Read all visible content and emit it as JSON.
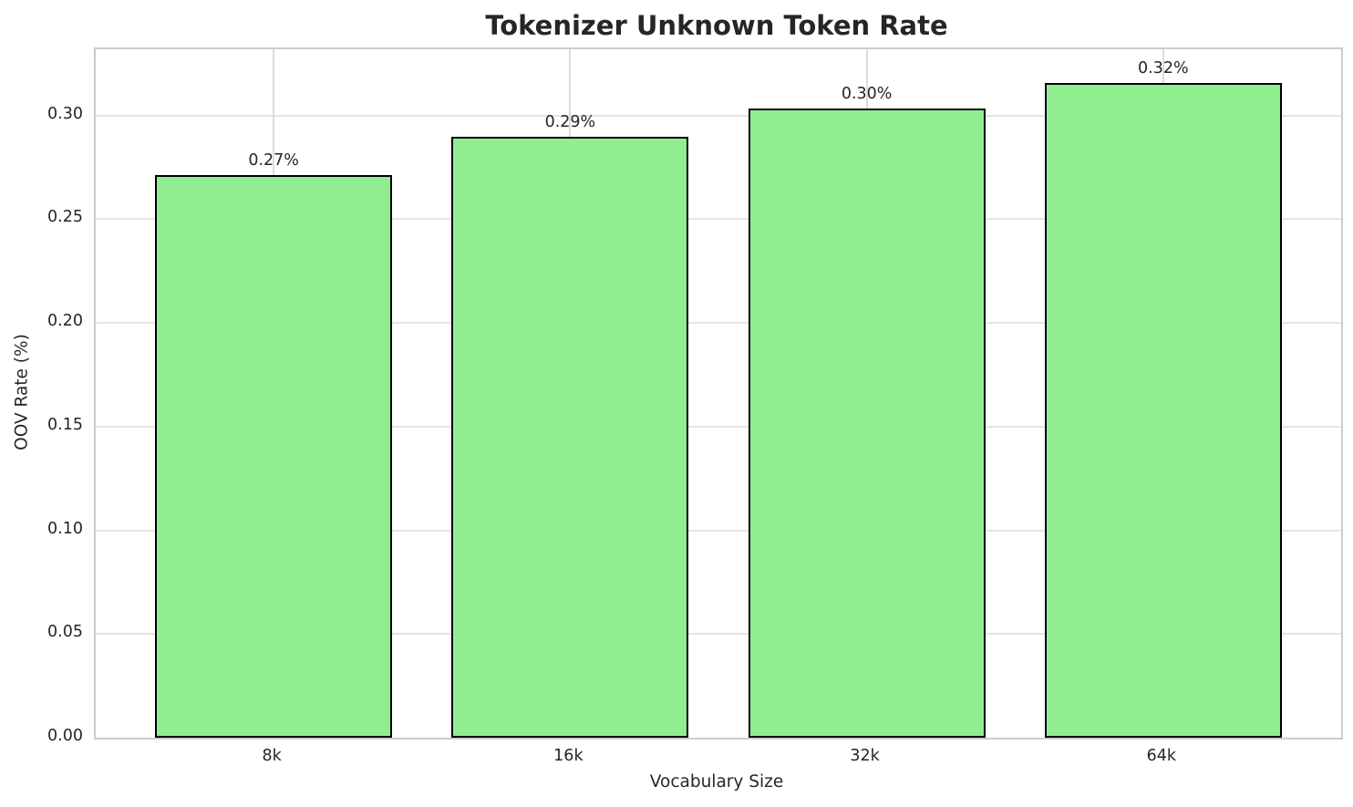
{
  "chart_data": {
    "type": "bar",
    "title": "Tokenizer Unknown Token Rate",
    "xlabel": "Vocabulary Size",
    "ylabel": "OOV Rate (%)",
    "categories": [
      "8k",
      "16k",
      "32k",
      "64k"
    ],
    "values": [
      0.2715,
      0.29,
      0.3035,
      0.3157
    ],
    "bar_value_labels": [
      "0.27%",
      "0.29%",
      "0.30%",
      "0.32%"
    ],
    "ytick_values": [
      0.0,
      0.05,
      0.1,
      0.15,
      0.2,
      0.25,
      0.3
    ],
    "ytick_labels": [
      "0.00",
      "0.05",
      "0.10",
      "0.15",
      "0.20",
      "0.25",
      "0.30"
    ],
    "ylim": [
      0,
      0.332
    ],
    "grid": true,
    "legend_position": "none",
    "bar_color": "#90EE90",
    "bar_edge_color": "#000000"
  }
}
